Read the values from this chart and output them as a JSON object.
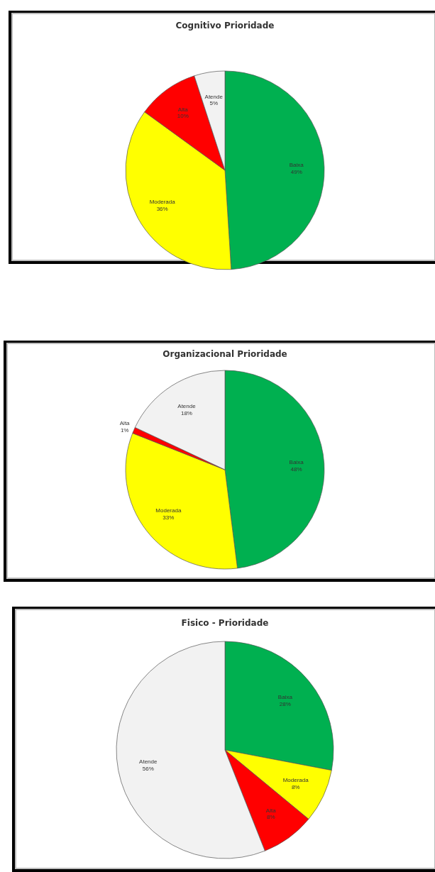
{
  "chart_data": [
    {
      "type": "pie",
      "title": "Cognitivo Prioridade",
      "categories": [
        "Baixa",
        "Moderada",
        "Alta",
        "Atende"
      ],
      "values": [
        49,
        36,
        10,
        5
      ],
      "value_labels": [
        "49%",
        "36%",
        "10%",
        "5%"
      ],
      "colors": [
        "#00b050",
        "#ffff00",
        "#ff0000",
        "#f2f2f2"
      ]
    },
    {
      "type": "pie",
      "title": "Organizacional  Prioridade",
      "categories": [
        "Baixa",
        "Moderada",
        "Alta",
        "Atende"
      ],
      "values": [
        48,
        33,
        1,
        18
      ],
      "value_labels": [
        "48%",
        "33%",
        "1%",
        "18%"
      ],
      "colors": [
        "#00b050",
        "#ffff00",
        "#ff0000",
        "#f2f2f2"
      ]
    },
    {
      "type": "pie",
      "title": "Fisico - Prioridade",
      "categories": [
        "Baixa",
        "Moderada",
        "Alta",
        "Atende"
      ],
      "values": [
        28,
        8,
        8,
        56
      ],
      "value_labels": [
        "28%",
        "8%",
        "8%",
        "56%"
      ],
      "colors": [
        "#00b050",
        "#ffff00",
        "#ff0000",
        "#f2f2f2"
      ]
    }
  ]
}
